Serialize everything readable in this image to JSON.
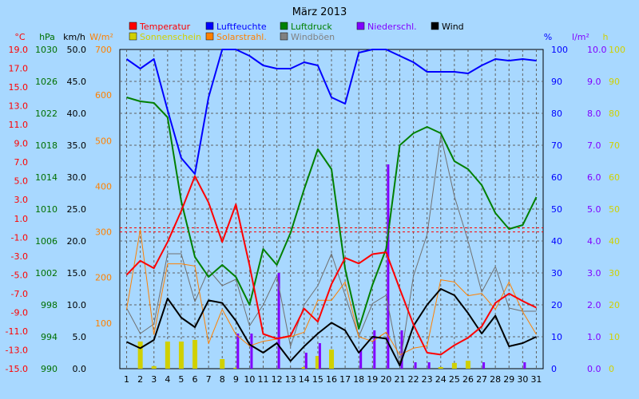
{
  "chart_data": {
    "type": "line",
    "title": "März 2013",
    "x": [
      1,
      2,
      3,
      4,
      5,
      6,
      7,
      8,
      9,
      10,
      11,
      12,
      13,
      14,
      15,
      16,
      17,
      18,
      19,
      20,
      21,
      22,
      23,
      24,
      25,
      26,
      27,
      28,
      29,
      30,
      31
    ],
    "axes": [
      {
        "unit": "°C",
        "color": "#ff0000",
        "min": -15,
        "max": 19,
        "ticks": [
          "19.0",
          "17.0",
          "15.0",
          "13.0",
          "11.0",
          "9.0",
          "7.0",
          "5.0",
          "3.0",
          "1.0",
          "-1.0",
          "-3.0",
          "-5.0",
          "-7.0",
          "-9.0",
          "-11.0",
          "-13.0",
          "-15.0"
        ]
      },
      {
        "unit": "hPa",
        "color": "#007000",
        "min": 990,
        "max": 1030,
        "ticks": [
          "1030",
          "1026",
          "1022",
          "1018",
          "1014",
          "1010",
          "1006",
          "1002",
          "998",
          "994",
          "990"
        ]
      },
      {
        "unit": "km/h",
        "color": "#000000",
        "min": 0,
        "max": 50,
        "ticks": [
          "50.0",
          "45.0",
          "40.0",
          "35.0",
          "30.0",
          "25.0",
          "20.0",
          "15.0",
          "10.0",
          "5.0",
          "0.0"
        ]
      },
      {
        "unit": "W/m²",
        "color": "#ff8000",
        "min": 0,
        "max": 700,
        "ticks": [
          "700",
          "600",
          "500",
          "400",
          "300",
          "200",
          "100"
        ]
      },
      {
        "unit": "%",
        "color": "#0000ff",
        "min": 0,
        "max": 100,
        "ticks": [
          "100",
          "90",
          "80",
          "70",
          "60",
          "50",
          "40",
          "30",
          "20",
          "10",
          "0"
        ]
      },
      {
        "unit": "l/m²",
        "color": "#8000ff",
        "min": 0,
        "max": 10,
        "ticks": [
          "10.0",
          "9.0",
          "8.0",
          "7.0",
          "6.0",
          "5.0",
          "4.0",
          "3.0",
          "2.0",
          "1.0",
          "0.0"
        ]
      },
      {
        "unit": "h",
        "color": "#d0d000",
        "min": 0,
        "max": 100,
        "ticks": [
          "100",
          "90",
          "80",
          "70",
          "60",
          "50",
          "40",
          "30",
          "20",
          "10",
          "0"
        ]
      }
    ],
    "legend": [
      {
        "name": "Temperatur",
        "color": "#ff0000"
      },
      {
        "name": "Luftfeuchte",
        "color": "#0000ff"
      },
      {
        "name": "Luftdruck",
        "color": "#008000"
      },
      {
        "name": "Niederschl.",
        "color": "#8000ff"
      },
      {
        "name": "Wind",
        "color": "#000000"
      },
      {
        "name": "Sonnenschein",
        "color": "#d0d000"
      },
      {
        "name": "Solarstrahl.",
        "color": "#ff8000"
      },
      {
        "name": "Windböen",
        "color": "#808080"
      }
    ],
    "series": [
      {
        "name": "Temperatur",
        "type": "line",
        "axis": 0,
        "color": "#ff0000",
        "width": 2,
        "values": [
          -5.0,
          -3.5,
          -4.3,
          -1.5,
          1.8,
          5.5,
          2.7,
          -1.5,
          2.5,
          -4.0,
          -11.3,
          -11.8,
          -11.5,
          -8.6,
          -10.0,
          -6.0,
          -3.2,
          -3.8,
          -2.8,
          -2.6,
          -6.5,
          -10.3,
          -13.3,
          -13.5,
          -12.5,
          -11.7,
          -10.5,
          -8.0,
          -7.0,
          -7.8,
          -8.5
        ]
      },
      {
        "name": "Luftfeuchte",
        "type": "line",
        "axis": 4,
        "color": "#0000ff",
        "width": 2,
        "values": [
          97,
          94,
          97,
          81,
          66,
          61,
          85,
          100,
          100,
          98,
          95,
          94,
          94,
          96,
          95,
          85,
          83,
          99,
          100,
          100,
          98,
          96,
          93,
          93,
          93,
          92.5,
          95,
          97,
          96.5,
          97,
          96.5
        ]
      },
      {
        "name": "Luftdruck",
        "type": "line",
        "axis": 1,
        "color": "#008000",
        "width": 2,
        "values": [
          1024,
          1023.5,
          1023.3,
          1021.5,
          1011,
          1004,
          1001.5,
          1003,
          1001.5,
          998,
          1005,
          1003,
          1007,
          1012.5,
          1017.5,
          1015,
          1002.5,
          995,
          1000.5,
          1005,
          1018,
          1019.5,
          1020.3,
          1019.5,
          1016,
          1015,
          1013,
          1009.5,
          1007.5,
          1008,
          1011.5
        ]
      },
      {
        "name": "Wind",
        "type": "line",
        "axis": 2,
        "color": "#000000",
        "width": 2,
        "values": [
          4.2,
          3.2,
          4.5,
          11.0,
          8.0,
          6.5,
          10.7,
          10.3,
          7.5,
          3.8,
          2.5,
          4.0,
          1.2,
          3.5,
          5.5,
          7.2,
          6.0,
          2.5,
          5.0,
          4.7,
          0.5,
          6.7,
          10.0,
          12.5,
          11.5,
          8.7,
          5.5,
          8.3,
          3.5,
          4.0,
          5.0
        ]
      },
      {
        "name": "Windböen",
        "type": "line",
        "axis": 2,
        "color": "#707070",
        "width": 1,
        "values": [
          9.5,
          5.5,
          7.0,
          18.0,
          18.0,
          10.5,
          15.5,
          13.0,
          14.0,
          6.7,
          10.0,
          14.5,
          3.5,
          10.0,
          13.0,
          18.0,
          11.5,
          5.0,
          10.2,
          11.5,
          0.5,
          14.5,
          21.0,
          36.5,
          27.0,
          20.0,
          12.0,
          16.0,
          9.5,
          9.0,
          9.0
        ]
      },
      {
        "name": "Solarstrahl.",
        "type": "line",
        "axis": 3,
        "color": "#ff8000",
        "width": 1,
        "values": [
          130,
          305,
          75,
          230,
          230,
          225,
          55,
          130,
          75,
          50,
          60,
          65,
          70,
          80,
          150,
          150,
          190,
          70,
          60,
          80,
          30,
          45,
          50,
          195,
          190,
          160,
          165,
          130,
          190,
          125,
          75
        ]
      },
      {
        "name": "Sonnenschein",
        "type": "bar",
        "axis": 6,
        "color": "#d0d000",
        "values": [
          0.0,
          8.5,
          0.8,
          8.5,
          8.5,
          9.0,
          0.0,
          3.0,
          0.3,
          0.0,
          0.0,
          0.0,
          0.0,
          0.5,
          4.0,
          6.0,
          0.0,
          0.0,
          0.0,
          0.0,
          0.0,
          0.0,
          0.0,
          0.5,
          1.8,
          2.5,
          0.0,
          0.0,
          0.0,
          0.0,
          0.0
        ]
      },
      {
        "name": "Niederschl.",
        "type": "bar",
        "axis": 5,
        "color": "#8000ff",
        "values": [
          0,
          0,
          0,
          0,
          0,
          0,
          0,
          0,
          1.1,
          1.1,
          0,
          3.0,
          0,
          0.5,
          0.8,
          0,
          0,
          0.6,
          1.2,
          6.4,
          1.2,
          0.2,
          0.2,
          0,
          0,
          0,
          0.2,
          0,
          0,
          0.2,
          0
        ]
      }
    ],
    "ref_lines": [
      {
        "axis": 0,
        "value": 0,
        "color": "#ff0000"
      },
      {
        "axis": 3,
        "value": 300,
        "color": "#ff0000"
      }
    ]
  }
}
